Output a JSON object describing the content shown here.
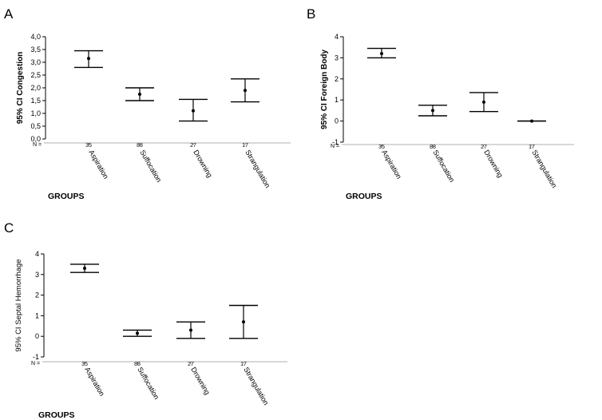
{
  "chart_data": [
    {
      "type": "errorbar",
      "panel": "A",
      "ylabel": "95% CI Congestion",
      "xlabel": "GROUPS",
      "n_label": "N =",
      "categories": [
        "Aspiration",
        "Suffocation",
        "Drowning",
        "Strangulation"
      ],
      "n": [
        "35",
        "88",
        "27",
        "17"
      ],
      "mean": [
        3.15,
        1.75,
        1.1,
        1.9
      ],
      "lower": [
        2.8,
        1.5,
        0.7,
        1.45
      ],
      "upper": [
        3.45,
        2.0,
        1.55,
        2.35
      ],
      "ylim": [
        0,
        4
      ],
      "yticks": [
        "0,0",
        "0,5",
        "1,0",
        "1,5",
        "2,0",
        "2,5",
        "3,0",
        "3,5",
        "4,0"
      ]
    },
    {
      "type": "errorbar",
      "panel": "B",
      "ylabel": "95% CI Foreign Body",
      "xlabel": "GROUPS",
      "n_label": "N =",
      "categories": [
        "Aspiration",
        "Suffocation",
        "Drowning",
        "Strangulation"
      ],
      "n": [
        "35",
        "88",
        "27",
        "17"
      ],
      "mean": [
        3.2,
        0.5,
        0.9,
        0.0
      ],
      "lower": [
        3.0,
        0.25,
        0.45,
        0.0
      ],
      "upper": [
        3.45,
        0.75,
        1.35,
        0.0
      ],
      "ylim": [
        -1,
        4
      ],
      "yticks": [
        "-1",
        "0",
        "1",
        "2",
        "3",
        "4"
      ]
    },
    {
      "type": "errorbar",
      "panel": "C",
      "ylabel": "95% CI Septal Hemorrhage",
      "xlabel": "GROUPS",
      "n_label": "N =",
      "categories": [
        "Aspiration",
        "Suffocation",
        "Drowning",
        "Strangulation"
      ],
      "n": [
        "35",
        "88",
        "27",
        "17"
      ],
      "mean": [
        3.3,
        0.15,
        0.3,
        0.7
      ],
      "lower": [
        3.1,
        0.0,
        -0.1,
        -0.1
      ],
      "upper": [
        3.5,
        0.3,
        0.7,
        1.5
      ],
      "ylim": [
        -1,
        4
      ],
      "yticks": [
        "-1",
        "0",
        "1",
        "2",
        "3",
        "4"
      ]
    }
  ]
}
